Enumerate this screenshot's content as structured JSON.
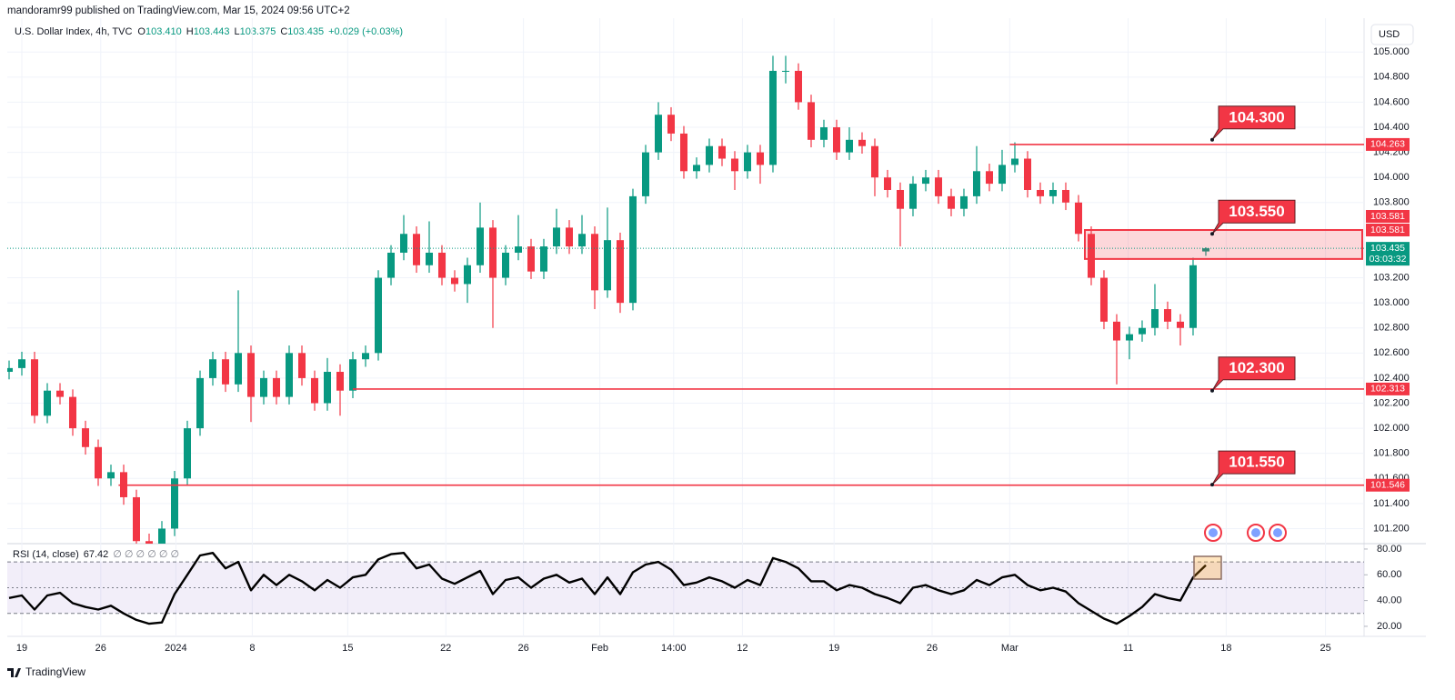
{
  "header": {
    "published": "mandoramr99 published on TradingView.com, Mar 15, 2024 09:56 UTC+2",
    "symbol": "U.S. Dollar Index, 4h, TVC",
    "ohlc": [
      {
        "key": "O",
        "value": "103.410"
      },
      {
        "key": "H",
        "value": "103.443"
      },
      {
        "key": "L",
        "value": "103.375"
      },
      {
        "key": "C",
        "value": "103.435"
      }
    ],
    "change": "+0.029 (+0.03%)",
    "currency": "USD"
  },
  "footer": {
    "brand": "TradingView"
  },
  "chart_data": [
    {
      "type": "candlestick",
      "up_color": "#089981",
      "down_color": "#f23645",
      "grid": true,
      "open": [
        102.45,
        102.48,
        102.55,
        102.1,
        102.3,
        102.25,
        102.0,
        101.85,
        101.6,
        101.65,
        101.45,
        101.1,
        101.05,
        101.2,
        101.6,
        102.0,
        102.4,
        102.55,
        102.35,
        102.6,
        102.25,
        102.4,
        102.25,
        102.6,
        102.4,
        102.2,
        102.45,
        102.3,
        102.55,
        102.6,
        103.2,
        103.4,
        103.55,
        103.3,
        103.4,
        103.2,
        103.15,
        103.3,
        103.6,
        103.2,
        103.4,
        103.45,
        103.25,
        103.45,
        103.6,
        103.45,
        103.55,
        103.1,
        103.5,
        103.0,
        103.85,
        104.2,
        104.5,
        104.35,
        104.05,
        104.1,
        104.25,
        104.15,
        104.05,
        104.2,
        104.1,
        104.85,
        104.85,
        104.6,
        104.3,
        104.4,
        104.2,
        104.3,
        104.25,
        104.0,
        103.9,
        103.75,
        103.95,
        104.0,
        103.85,
        103.75,
        103.85,
        104.05,
        103.95,
        104.1,
        104.15,
        103.9,
        103.85,
        103.9,
        103.8,
        103.55,
        103.2,
        102.85,
        102.7,
        102.75,
        102.8,
        102.95,
        102.85,
        102.8,
        103.41
      ],
      "high": [
        102.54,
        102.61,
        102.61,
        102.36,
        102.36,
        102.31,
        102.06,
        101.91,
        101.71,
        101.71,
        101.51,
        101.16,
        101.26,
        101.66,
        102.06,
        102.46,
        102.61,
        102.61,
        103.1,
        102.66,
        102.46,
        102.46,
        102.66,
        102.66,
        102.46,
        102.56,
        102.51,
        102.61,
        102.66,
        103.26,
        103.46,
        103.7,
        103.61,
        103.65,
        103.46,
        103.26,
        103.36,
        103.8,
        103.66,
        103.46,
        103.7,
        103.51,
        103.51,
        103.75,
        103.66,
        103.7,
        103.61,
        103.76,
        103.56,
        103.91,
        104.26,
        104.6,
        104.56,
        104.41,
        104.16,
        104.31,
        104.31,
        104.21,
        104.26,
        104.26,
        104.97,
        104.97,
        104.91,
        104.66,
        104.46,
        104.46,
        104.4,
        104.36,
        104.31,
        104.06,
        103.96,
        104.01,
        104.06,
        104.06,
        103.91,
        103.91,
        104.25,
        104.11,
        104.22,
        104.28,
        104.21,
        103.96,
        103.96,
        103.96,
        103.86,
        103.61,
        103.26,
        102.91,
        102.81,
        102.86,
        103.15,
        103.01,
        102.91,
        103.36,
        103.443
      ],
      "low": [
        102.39,
        102.42,
        102.04,
        102.04,
        102.19,
        101.94,
        101.79,
        101.54,
        101.54,
        101.39,
        101.04,
        100.99,
        100.99,
        101.14,
        101.54,
        101.94,
        102.34,
        102.29,
        102.29,
        102.05,
        102.19,
        102.19,
        102.19,
        102.34,
        102.14,
        102.14,
        102.1,
        102.24,
        102.49,
        102.54,
        103.14,
        103.34,
        103.24,
        103.24,
        103.14,
        103.09,
        103.0,
        103.24,
        102.8,
        103.14,
        103.34,
        103.19,
        103.19,
        103.39,
        103.39,
        103.39,
        102.95,
        103.04,
        102.92,
        102.94,
        103.79,
        104.14,
        104.29,
        103.99,
        103.99,
        104.04,
        104.09,
        103.9,
        103.99,
        103.95,
        104.04,
        104.75,
        104.54,
        104.24,
        104.24,
        104.14,
        104.14,
        104.19,
        103.85,
        103.84,
        103.45,
        103.69,
        103.89,
        103.79,
        103.69,
        103.69,
        103.79,
        103.89,
        103.89,
        104.04,
        103.84,
        103.79,
        103.79,
        103.74,
        103.49,
        103.14,
        102.79,
        102.35,
        102.55,
        102.69,
        102.74,
        102.79,
        102.66,
        102.74,
        103.375
      ],
      "close": [
        102.48,
        102.55,
        102.1,
        102.3,
        102.25,
        102.0,
        101.85,
        101.6,
        101.65,
        101.45,
        101.1,
        101.05,
        101.2,
        101.6,
        102.0,
        102.4,
        102.55,
        102.35,
        102.6,
        102.25,
        102.4,
        102.25,
        102.6,
        102.4,
        102.2,
        102.45,
        102.3,
        102.55,
        102.6,
        103.2,
        103.4,
        103.55,
        103.3,
        103.4,
        103.2,
        103.15,
        103.3,
        103.6,
        103.2,
        103.4,
        103.45,
        103.25,
        103.45,
        103.6,
        103.45,
        103.55,
        103.1,
        103.5,
        103.0,
        103.85,
        104.2,
        104.5,
        104.35,
        104.05,
        104.1,
        104.25,
        104.15,
        104.05,
        104.2,
        104.1,
        104.85,
        104.85,
        104.6,
        104.3,
        104.4,
        104.2,
        104.3,
        104.25,
        104.0,
        103.9,
        103.75,
        103.95,
        104.0,
        103.85,
        103.75,
        103.85,
        104.05,
        103.95,
        104.1,
        104.15,
        103.9,
        103.85,
        103.9,
        103.8,
        103.55,
        103.2,
        102.85,
        102.7,
        102.75,
        102.8,
        102.95,
        102.85,
        102.8,
        103.3,
        103.435
      ],
      "xlim": [
        -0.143,
        106.43
      ],
      "xticks": [
        {
          "value": 1,
          "label": "19"
        },
        {
          "value": 7.2,
          "label": "26"
        },
        {
          "value": 13.1,
          "label": "2024"
        },
        {
          "value": 19.1,
          "label": "8"
        },
        {
          "value": 26.6,
          "label": "15"
        },
        {
          "value": 34.3,
          "label": "22"
        },
        {
          "value": 40.4,
          "label": "26"
        },
        {
          "value": 46.4,
          "label": "Feb"
        },
        {
          "value": 52.2,
          "label": "14:00"
        },
        {
          "value": 57.6,
          "label": "12"
        },
        {
          "value": 64.8,
          "label": "19"
        },
        {
          "value": 72.5,
          "label": "26"
        },
        {
          "value": 78.6,
          "label": "Mar"
        },
        {
          "value": 87.9,
          "label": "11"
        },
        {
          "value": 95.6,
          "label": "18"
        },
        {
          "value": 103.4,
          "label": "25"
        }
      ],
      "ylim": [
        101.08,
        105.27
      ],
      "yticks": [
        {
          "value": 105.0,
          "label": "105.000"
        },
        {
          "value": 104.8,
          "label": "104.800"
        },
        {
          "value": 104.6,
          "label": "104.600"
        },
        {
          "value": 104.4,
          "label": "104.400"
        },
        {
          "value": 104.2,
          "label": "104.200"
        },
        {
          "value": 104.0,
          "label": "104.000"
        },
        {
          "value": 103.8,
          "label": "103.800"
        },
        {
          "value": 103.2,
          "label": "103.200"
        },
        {
          "value": 103.0,
          "label": "103.000"
        },
        {
          "value": 102.8,
          "label": "102.800"
        },
        {
          "value": 102.6,
          "label": "102.600"
        },
        {
          "value": 102.4,
          "label": "102.400"
        },
        {
          "value": 102.2,
          "label": "102.200"
        },
        {
          "value": 102.0,
          "label": "102.000"
        },
        {
          "value": 101.8,
          "label": "101.800"
        },
        {
          "value": 101.6,
          "label": "101.600"
        },
        {
          "value": 101.4,
          "label": "101.400"
        },
        {
          "value": 101.2,
          "label": "101.200"
        }
      ],
      "levels": [
        {
          "value": 104.263,
          "label": "104.263",
          "start": 78.6
        },
        {
          "value": 102.313,
          "label": "102.313",
          "start": 27.0
        },
        {
          "value": 101.546,
          "label": "101.546",
          "start": 8.6
        }
      ],
      "zone": {
        "high": 103.581,
        "low": 103.35,
        "label": "103.581",
        "start": 84.5
      },
      "last_price": {
        "value": 103.435,
        "label": "103.435",
        "countdown": "03:03:32"
      },
      "callouts": [
        {
          "value": 104.3,
          "label": "104.300"
        },
        {
          "value": 103.55,
          "label": "103.550"
        },
        {
          "value": 102.3,
          "label": "102.300"
        },
        {
          "value": 101.55,
          "label": "101.550"
        }
      ]
    },
    {
      "type": "line",
      "inputs": "∅ ∅ ∅ ∅ ∅ ∅",
      "series": [
        {
          "name": "RSI (14, close)",
          "color": "#000000",
          "values": [
            42,
            44,
            33,
            44,
            46,
            38,
            35,
            33,
            36,
            30,
            25,
            22,
            23,
            45,
            60,
            75,
            77,
            65,
            70,
            48,
            60,
            52,
            60,
            55,
            48,
            56,
            50,
            58,
            60,
            72,
            76,
            77,
            65,
            68,
            57,
            53,
            58,
            63,
            45,
            56,
            58,
            50,
            57,
            60,
            54,
            57,
            45,
            58,
            45,
            62,
            68,
            70,
            64,
            52,
            54,
            58,
            55,
            50,
            56,
            52,
            73,
            70,
            65,
            55,
            55,
            48,
            52,
            50,
            45,
            42,
            38,
            50,
            52,
            48,
            45,
            48,
            56,
            52,
            58,
            60,
            52,
            48,
            50,
            47,
            38,
            32,
            26,
            22,
            28,
            35,
            45,
            42,
            40,
            58,
            67.42
          ]
        }
      ],
      "ylim": [
        12.2,
        84.2
      ],
      "yticks": [
        {
          "value": 80,
          "label": "80.00"
        },
        {
          "value": 60,
          "label": "60.00"
        },
        {
          "value": 40,
          "label": "40.00"
        },
        {
          "value": 20,
          "label": "20.00"
        }
      ],
      "bands": [
        70,
        50,
        30
      ]
    }
  ]
}
